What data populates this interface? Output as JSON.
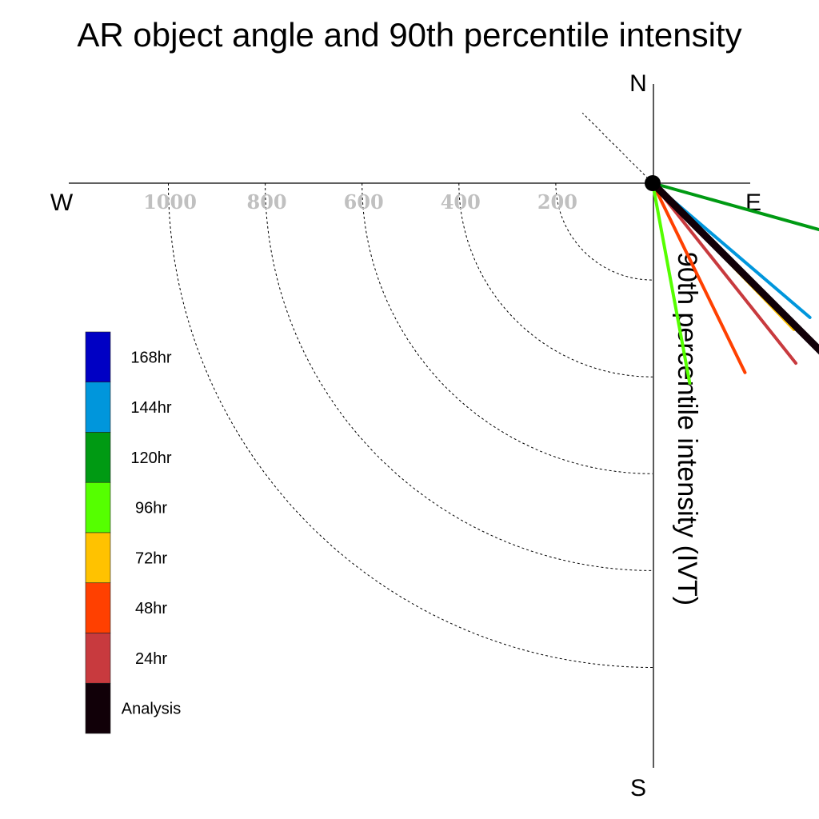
{
  "chart_data": {
    "type": "polar-vector",
    "title": "AR object angle and 90th percentile intensity",
    "ylabel": "90th percentile intensity (IVT)",
    "compass": {
      "north": "N",
      "south": "S",
      "east": "E",
      "west": "W"
    },
    "radial_ticks": [
      200,
      400,
      600,
      800,
      1000
    ],
    "rlim": [
      0,
      1200
    ],
    "reference_angle_deg": 225,
    "series": [
      {
        "name": "Analysis",
        "color": "#110008",
        "angle_deg": 225.0,
        "value": 495,
        "width": 9
      },
      {
        "name": "24hr",
        "color": "#c83a3e",
        "angle_deg": 218.5,
        "value": 475,
        "width": 4
      },
      {
        "name": "48hr",
        "color": "#ff4000",
        "angle_deg": 206.0,
        "value": 435,
        "width": 4
      },
      {
        "name": "72hr",
        "color": "#ffc200",
        "angle_deg": 224.0,
        "value": 420,
        "width": 4
      },
      {
        "name": "96hr",
        "color": "#55ff00",
        "angle_deg": 190.5,
        "value": 420,
        "width": 4
      },
      {
        "name": "120hr",
        "color": "#009a13",
        "angle_deg": 254.4,
        "value": 376,
        "width": 4
      },
      {
        "name": "144hr",
        "color": "#0096dc",
        "angle_deg": 229.5,
        "value": 427,
        "width": 4
      },
      {
        "name": "168hr",
        "color": "#0000c4",
        "angle_deg": 229.0,
        "value": 60,
        "width": 3
      }
    ],
    "legend": {
      "placement": "left",
      "entries": [
        {
          "label": "168hr",
          "color": "#0000c4"
        },
        {
          "label": "144hr",
          "color": "#0096dc"
        },
        {
          "label": "120hr",
          "color": "#009a13"
        },
        {
          "label": "96hr",
          "color": "#55ff00"
        },
        {
          "label": "72hr",
          "color": "#ffc200"
        },
        {
          "label": "48hr",
          "color": "#ff4000"
        },
        {
          "label": "24hr",
          "color": "#c83a3e"
        },
        {
          "label": "Analysis",
          "color": "#110008"
        }
      ]
    }
  }
}
